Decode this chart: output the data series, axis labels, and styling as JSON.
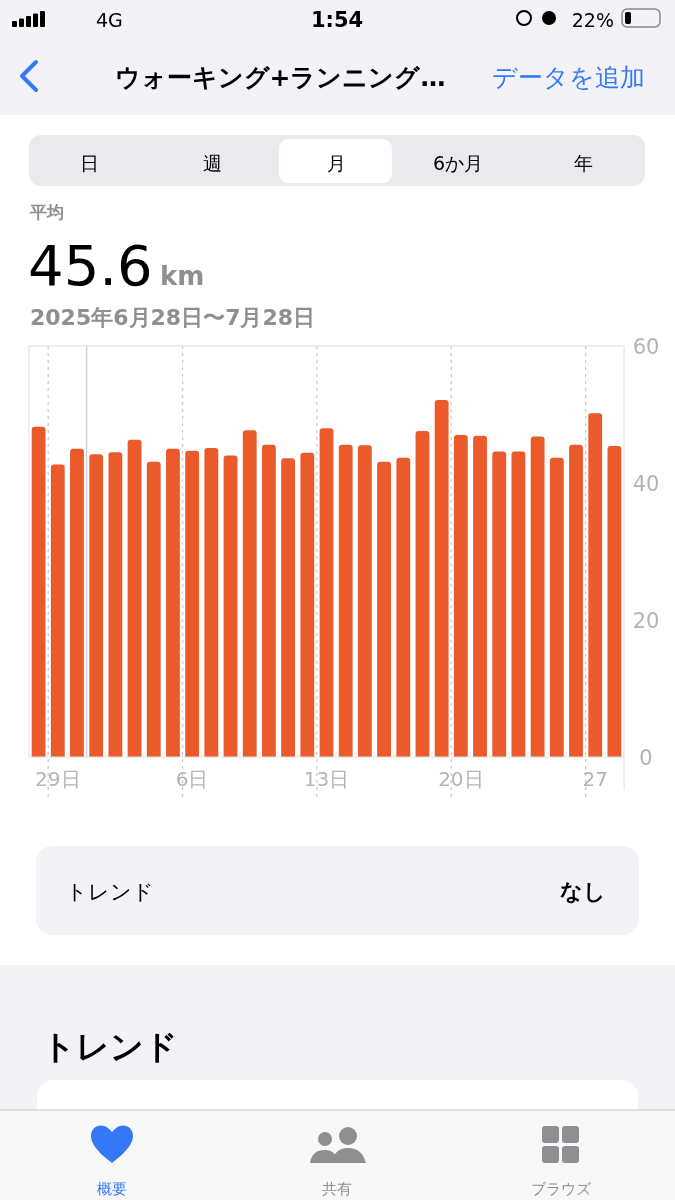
{
  "chart_data": {
    "type": "bar",
    "title": "ウォーキング+ランニング…",
    "x": [
      "2025-06-28",
      "2025-06-29",
      "2025-06-30",
      "2025-07-01",
      "2025-07-02",
      "2025-07-03",
      "2025-07-04",
      "2025-07-05",
      "2025-07-06",
      "2025-07-07",
      "2025-07-08",
      "2025-07-09",
      "2025-07-10",
      "2025-07-11",
      "2025-07-12",
      "2025-07-13",
      "2025-07-14",
      "2025-07-15",
      "2025-07-16",
      "2025-07-17",
      "2025-07-18",
      "2025-07-19",
      "2025-07-20",
      "2025-07-21",
      "2025-07-22",
      "2025-07-23",
      "2025-07-24",
      "2025-07-25",
      "2025-07-26",
      "2025-07-27",
      "2025-07-28"
    ],
    "values": [
      48.2,
      42.7,
      45.0,
      44.2,
      44.5,
      46.3,
      43.1,
      45.0,
      44.7,
      45.1,
      44.0,
      47.7,
      45.6,
      43.6,
      44.4,
      48.0,
      45.6,
      45.5,
      43.1,
      43.7,
      47.6,
      52.1,
      47.0,
      46.9,
      44.6,
      44.6,
      46.8,
      43.7,
      45.6,
      50.2,
      45.4
    ],
    "color": "#eb5a2a",
    "xlim": [
      "2025-06-27T12:00",
      "2025-07-28T12:00"
    ],
    "xticks": [
      {
        "value": "2025-06-29",
        "label": "29日"
      },
      {
        "value": "2025-07-06",
        "label": "6日"
      },
      {
        "value": "2025-07-13",
        "label": "13日"
      },
      {
        "value": "2025-07-20",
        "label": "20日"
      },
      {
        "value": "2025-07-27",
        "label": "27"
      }
    ],
    "ylim": [
      0,
      60
    ],
    "yticks": [
      0,
      20,
      40,
      60
    ],
    "grid": "x",
    "ref_lines": [
      {
        "axis": "x",
        "value": "2025-06-30T12:00",
        "color": "#d4d4d8",
        "line_style": "solid"
      }
    ],
    "annotations": [
      "1:54",
      "4G",
      "22%",
      "データを追加",
      "日",
      "週",
      "月",
      "6か月",
      "年",
      "平均",
      "45.6",
      "km",
      "2025年6月28日〜7月28日",
      "トレンド",
      "なし",
      "トレンド",
      "概要",
      "共有",
      "ブラウズ"
    ]
  }
}
